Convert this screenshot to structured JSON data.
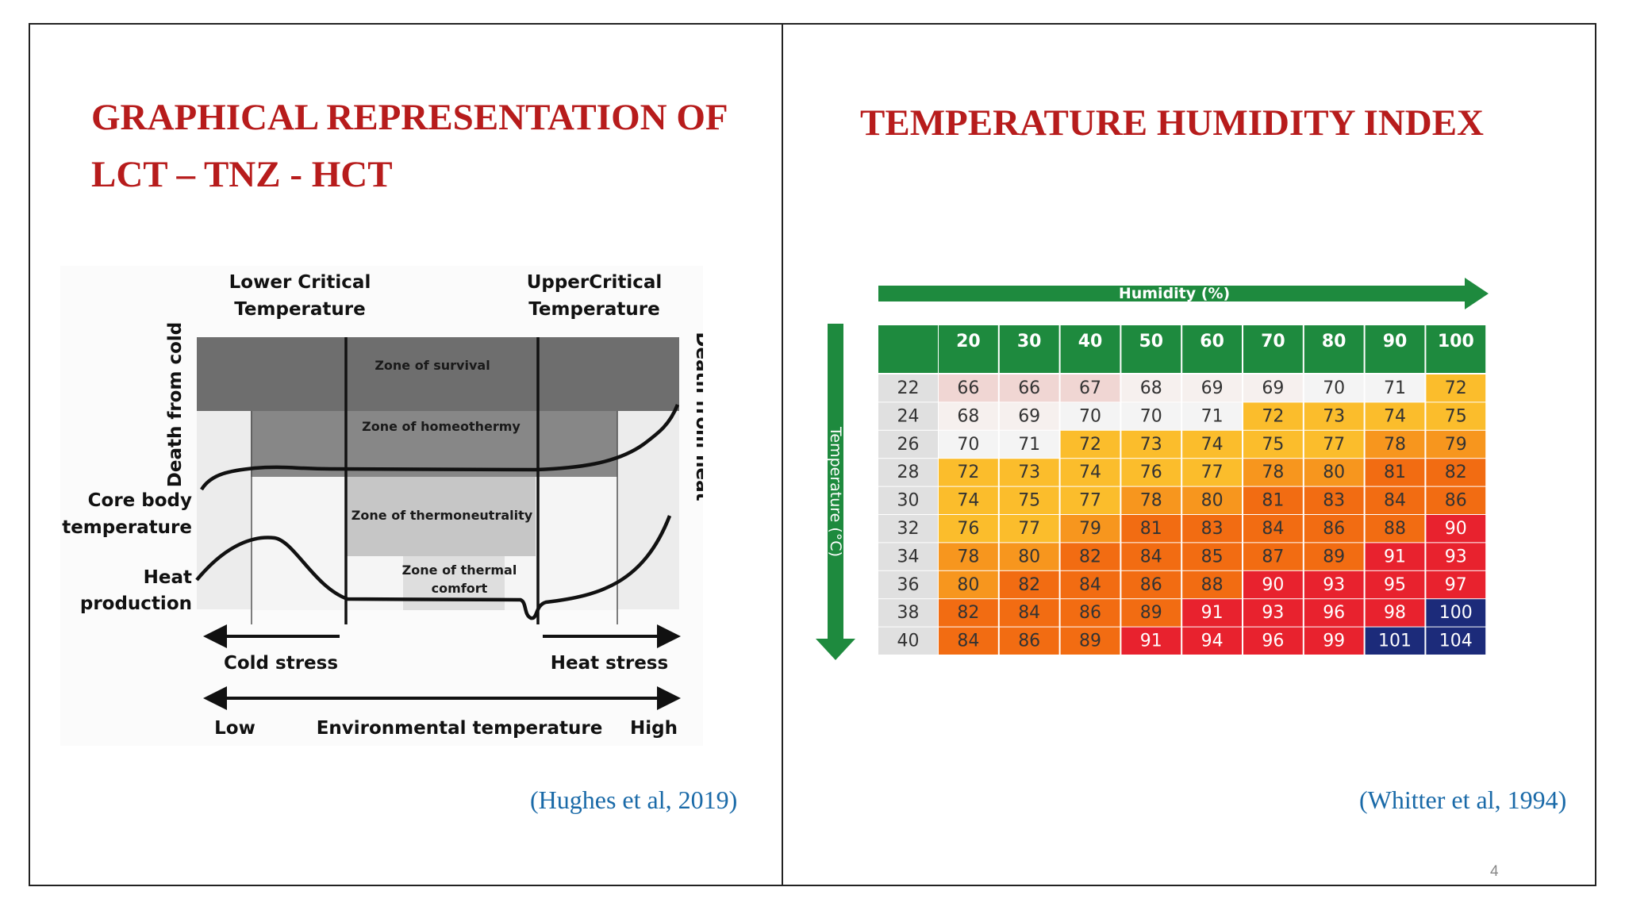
{
  "slide": {
    "left_title_line1": "GRAPHICAL REPRESENTATION OF",
    "left_title_line2": "LCT – TNZ - HCT",
    "right_title": "TEMPERATURE HUMIDITY INDEX",
    "left_citation": "(Hughes et al, 2019)",
    "right_citation": "(Whitter et al, 1994)",
    "page_number": "4"
  },
  "diagram": {
    "lower_critical_line1": "Lower Critical",
    "lower_critical_line2": "Temperature",
    "upper_critical_line1": "UpperCritical",
    "upper_critical_line2": "Temperature",
    "death_cold": "Death from cold",
    "death_heat": "Death from heat",
    "zone_survival": "Zone of survival",
    "zone_homeothermy": "Zone of homeothermy",
    "zone_thermoneutrality": "Zone of thermoneutrality",
    "zone_comfort_line1": "Zone of thermal",
    "zone_comfort_line2": "comfort",
    "core_line1": "Core body",
    "core_line2": "temperature",
    "heat_line1": "Heat",
    "heat_line2": "production",
    "cold_stress": "Cold stress",
    "heat_stress": "Heat stress",
    "low": "Low",
    "env_temp": "Environmental temperature",
    "high": "High"
  },
  "chart_data": {
    "type": "table",
    "title": "TEMPERATURE HUMIDITY INDEX",
    "xlabel": "Humidity (%)",
    "ylabel": "Temperature (°C)",
    "columns": [
      "20",
      "30",
      "40",
      "50",
      "60",
      "70",
      "80",
      "90",
      "100"
    ],
    "rows": [
      {
        "temp": "22",
        "values": [
          "66",
          "66",
          "67",
          "68",
          "69",
          "69",
          "70",
          "71",
          "72"
        ]
      },
      {
        "temp": "24",
        "values": [
          "68",
          "69",
          "70",
          "70",
          "71",
          "72",
          "73",
          "74",
          "75"
        ]
      },
      {
        "temp": "26",
        "values": [
          "70",
          "71",
          "72",
          "73",
          "74",
          "75",
          "77",
          "78",
          "79"
        ]
      },
      {
        "temp": "28",
        "values": [
          "72",
          "73",
          "74",
          "76",
          "77",
          "78",
          "80",
          "81",
          "82"
        ]
      },
      {
        "temp": "30",
        "values": [
          "74",
          "75",
          "77",
          "78",
          "80",
          "81",
          "83",
          "84",
          "86"
        ]
      },
      {
        "temp": "32",
        "values": [
          "76",
          "77",
          "79",
          "81",
          "83",
          "84",
          "86",
          "88",
          "90"
        ]
      },
      {
        "temp": "34",
        "values": [
          "78",
          "80",
          "82",
          "84",
          "85",
          "87",
          "89",
          "91",
          "93"
        ]
      },
      {
        "temp": "36",
        "values": [
          "80",
          "82",
          "84",
          "86",
          "88",
          "90",
          "93",
          "95",
          "97"
        ]
      },
      {
        "temp": "38",
        "values": [
          "82",
          "84",
          "86",
          "89",
          "91",
          "93",
          "96",
          "98",
          "100"
        ]
      },
      {
        "temp": "40",
        "values": [
          "84",
          "86",
          "89",
          "91",
          "94",
          "96",
          "99",
          "101",
          "104"
        ]
      }
    ],
    "header_color": "#1e8a3e",
    "row_header_color": "#e0e0e0"
  }
}
